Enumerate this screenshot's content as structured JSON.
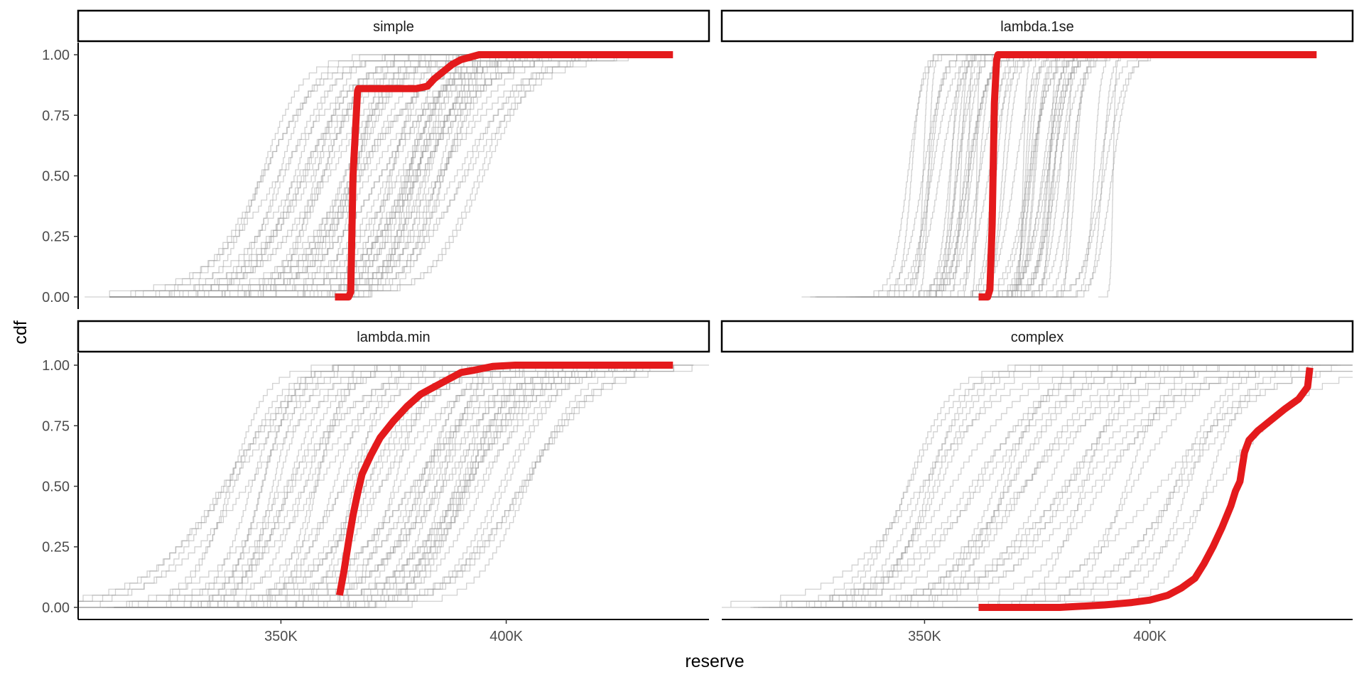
{
  "chart_data": {
    "type": "line",
    "subtype": "faceted empirical CDF (step) plot",
    "xlabel": "reserve",
    "ylabel": "cdf",
    "x_ticks": [
      350000,
      400000
    ],
    "x_tick_labels": [
      "350K",
      "400K"
    ],
    "xlim": [
      305000,
      445000
    ],
    "y_ticks": [
      0,
      0.25,
      0.5,
      0.75,
      1.0
    ],
    "y_tick_labels": [
      "0.00",
      "0.25",
      "0.50",
      "0.75",
      "1.00"
    ],
    "ylim": [
      -0.05,
      1.05
    ],
    "grid": false,
    "legend": "none",
    "colors": {
      "highlight": "#e41a1c",
      "background_lines": "#999999"
    },
    "facets": [
      {
        "strip_label": "simple",
        "bg_line_count": 60,
        "bg_center_range": [
          345000,
          395000
        ],
        "bg_spread_range": [
          2500,
          9000
        ],
        "bg_x_range": [
          312000,
          402000
        ],
        "highlight": {
          "x": [
            362000,
            365000,
            365500,
            366000,
            367000,
            367200,
            380000,
            382500,
            384000,
            386000,
            388000,
            390000,
            392000,
            394000,
            398000,
            437000
          ],
          "y": [
            0.0,
            0.0,
            0.02,
            0.5,
            0.85,
            0.86,
            0.86,
            0.87,
            0.9,
            0.93,
            0.96,
            0.98,
            0.99,
            1.0,
            1.0,
            1.0
          ]
        }
      },
      {
        "strip_label": "lambda.1se",
        "bg_line_count": 60,
        "bg_center_range": [
          345000,
          393000
        ],
        "bg_spread_range": [
          200,
          2500
        ],
        "bg_x_range": [
          312000,
          438000
        ],
        "highlight": {
          "x": [
            362000,
            364000,
            364500,
            365000,
            365500,
            366000,
            366300,
            437000
          ],
          "y": [
            0.0,
            0.0,
            0.03,
            0.3,
            0.8,
            0.98,
            1.0,
            1.0
          ]
        }
      },
      {
        "strip_label": "lambda.min",
        "bg_line_count": 60,
        "bg_center_range": [
          335000,
          405000
        ],
        "bg_spread_range": [
          3000,
          10000
        ],
        "bg_x_range": [
          313000,
          418000
        ],
        "highlight": {
          "x": [
            363000,
            364000,
            365000,
            366000,
            367000,
            368000,
            370000,
            372000,
            375000,
            378000,
            381000,
            384000,
            387000,
            390000,
            393000,
            397000,
            402000,
            437000
          ],
          "y": [
            0.05,
            0.15,
            0.27,
            0.38,
            0.47,
            0.55,
            0.63,
            0.7,
            0.77,
            0.83,
            0.88,
            0.91,
            0.94,
            0.97,
            0.98,
            0.995,
            1.0,
            1.0
          ]
        }
      },
      {
        "strip_label": "complex",
        "bg_line_count": 35,
        "bg_center_range": [
          345000,
          420000
        ],
        "bg_spread_range": [
          4000,
          12000
        ],
        "bg_x_range": [
          325000,
          432000
        ],
        "highlight": {
          "x": [
            362000,
            380000,
            390000,
            396000,
            400000,
            404000,
            407000,
            410000,
            412000,
            414000,
            416000,
            418000,
            419000,
            420000,
            420500,
            421000,
            422000,
            424000,
            426000,
            428000,
            430000,
            433000,
            435000,
            435500
          ],
          "y": [
            0.0,
            0.0,
            0.01,
            0.02,
            0.03,
            0.05,
            0.08,
            0.12,
            0.18,
            0.25,
            0.33,
            0.42,
            0.48,
            0.52,
            0.58,
            0.64,
            0.69,
            0.73,
            0.76,
            0.79,
            0.82,
            0.86,
            0.91,
            0.99
          ]
        }
      }
    ]
  }
}
